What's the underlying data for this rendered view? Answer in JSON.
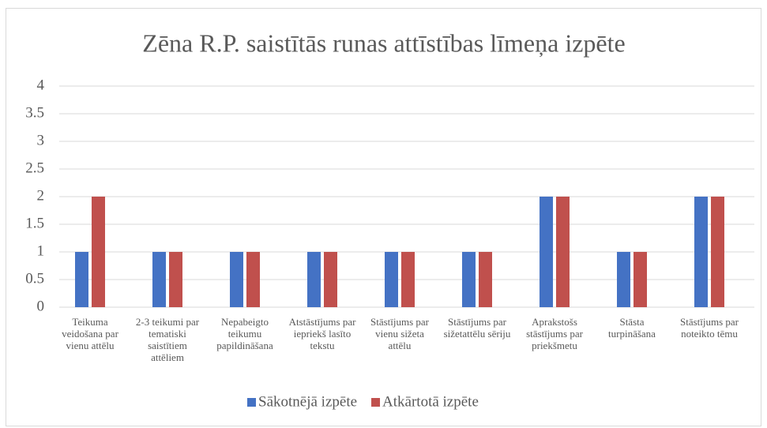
{
  "chart_data": {
    "type": "bar",
    "title": "Zēna R.P. saistītās runas attīstības līmeņa izpēte",
    "categories": [
      "Teikuma veidošana par vienu attēlu",
      "2-3 teikumi par tematiski saistītiem attēliem",
      "Nepabeigto teikumu papildināšana",
      "Atstāstījums par iepriekš lasīto tekstu",
      "Stāstījums par vienu sižeta attēlu",
      "Stāstījums par sižetattēlu sēriju",
      "Aprakstošs stāstījums par priekšmetu",
      "Stāsta turpināšana",
      "Stāstījums par noteikto tēmu"
    ],
    "series": [
      {
        "name": "Sākotnējā izpēte",
        "color": "#4472c4",
        "values": [
          1,
          1,
          1,
          1,
          1,
          1,
          2,
          1,
          2
        ]
      },
      {
        "name": "Atkārtotā izpēte",
        "color": "#c0504d",
        "values": [
          2,
          1,
          1,
          1,
          1,
          1,
          2,
          1,
          2
        ]
      }
    ],
    "ylim": [
      0,
      4
    ],
    "yticks": [
      0,
      0.5,
      1,
      1.5,
      2,
      2.5,
      3,
      3.5,
      4
    ],
    "grid": true,
    "legend": "bottom"
  }
}
